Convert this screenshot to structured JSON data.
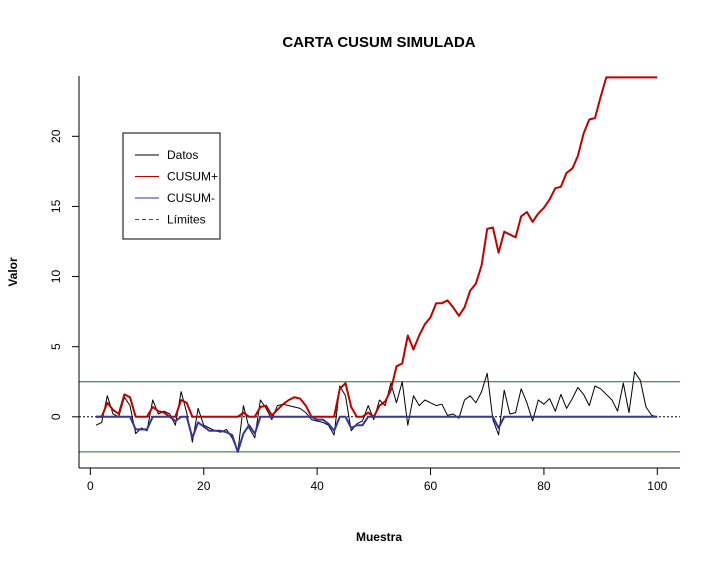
{
  "chart_data": {
    "type": "line",
    "title": "CARTA CUSUM SIMULADA",
    "xlabel": "Muestra",
    "ylabel": "Valor",
    "xlim": [
      -2,
      104
    ],
    "ylim": [
      -3.65,
      24.3
    ],
    "xticks": [
      0,
      20,
      40,
      60,
      80,
      100
    ],
    "yticks": [
      0,
      5,
      10,
      15,
      20
    ],
    "legend_position": "top-left",
    "control_limits": [
      2.5,
      -2.5
    ],
    "center_line": 0,
    "x": [
      1,
      2,
      3,
      4,
      5,
      6,
      7,
      8,
      9,
      10,
      11,
      12,
      13,
      14,
      15,
      16,
      17,
      18,
      19,
      20,
      21,
      22,
      23,
      24,
      25,
      26,
      27,
      28,
      29,
      30,
      31,
      32,
      33,
      34,
      35,
      36,
      37,
      38,
      39,
      40,
      41,
      42,
      43,
      44,
      45,
      46,
      47,
      48,
      49,
      50,
      51,
      52,
      53,
      54,
      55,
      56,
      57,
      58,
      59,
      60,
      61,
      62,
      63,
      64,
      65,
      66,
      67,
      68,
      69,
      70,
      71,
      72,
      73,
      74,
      75,
      76,
      77,
      78,
      79,
      80,
      81,
      82,
      83,
      84,
      85,
      86,
      87,
      88,
      89,
      90,
      91,
      92,
      93,
      94,
      95,
      96,
      97,
      98,
      99,
      100
    ],
    "series": [
      {
        "name": "Datos",
        "color": "#000000",
        "values": [
          -0.6,
          -0.4,
          1.5,
          0.2,
          0.0,
          1.4,
          0.8,
          -1.2,
          -0.8,
          -1.0,
          1.2,
          0.2,
          0.4,
          0.2,
          -0.6,
          1.8,
          0.3,
          -1.8,
          0.6,
          -0.6,
          -0.8,
          -1.0,
          -1.1,
          -0.9,
          -1.5,
          -2.5,
          0.8,
          -0.8,
          -1.5,
          1.2,
          0.6,
          -0.2,
          0.8,
          0.9,
          0.8,
          0.7,
          0.6,
          0.3,
          -0.2,
          -0.3,
          -0.4,
          -0.6,
          -1.3,
          2.2,
          1.5,
          -1.0,
          -0.5,
          -0.3,
          0.8,
          -0.2,
          1.2,
          0.8,
          2.4,
          1.0,
          2.5,
          -0.6,
          1.5,
          0.8,
          1.2,
          1.0,
          0.8,
          0.9,
          0.1,
          0.2,
          -0.1,
          1.2,
          1.5,
          1.0,
          1.8,
          3.1,
          -0.2,
          -1.3,
          1.9,
          0.2,
          0.3,
          2.0,
          1.0,
          -0.3,
          1.2,
          0.9,
          1.3,
          0.4,
          1.6,
          0.6,
          1.3,
          2.1,
          1.6,
          0.8,
          2.2,
          2.0,
          1.6,
          1.2,
          0.4,
          2.4,
          0.3,
          3.2,
          2.6,
          0.7,
          0.1,
          0.0
        ]
      },
      {
        "name": "CUSUM+",
        "color": "#c00000",
        "values": [
          0,
          0,
          1.0,
          0.5,
          0.2,
          1.6,
          1.4,
          0,
          0,
          0,
          0.7,
          0.4,
          0.3,
          0,
          0,
          1.2,
          1.0,
          0,
          0,
          0,
          0,
          0,
          0,
          0,
          0,
          0,
          0.3,
          0,
          0,
          0.7,
          0.8,
          0.1,
          0.5,
          0.9,
          1.2,
          1.4,
          1.3,
          0.8,
          0,
          0,
          0,
          0,
          0,
          2.0,
          2.4,
          0.7,
          0,
          0,
          0.3,
          0,
          0.8,
          1.1,
          1.9,
          3.6,
          3.8,
          5.8,
          4.8,
          5.8,
          6.6,
          7.1,
          8.1,
          8.1,
          8.3,
          7.8,
          7.2,
          7.8,
          9.0,
          9.5,
          10.8,
          13.4,
          13.5,
          11.7,
          13.2,
          13.0,
          12.8,
          14.3,
          14.6,
          13.9,
          14.5,
          14.9,
          15.5,
          16.3,
          16.4,
          17.4,
          17.7,
          18.6,
          20.2,
          21.2,
          21.3,
          22.8,
          24.2,
          24.2,
          24.2,
          24.2,
          24.2,
          24.2,
          24.2,
          24.2,
          24.2,
          24.2
        ]
      },
      {
        "name": "CUSUM-",
        "color": "#3535a0",
        "values": [
          0,
          0,
          0,
          0,
          0,
          0,
          0,
          -0.9,
          -0.9,
          -0.9,
          0,
          0,
          0,
          0,
          -0.3,
          0,
          0,
          -1.5,
          -0.4,
          -0.7,
          -1.0,
          -1.0,
          -1.0,
          -1.1,
          -1.3,
          -2.5,
          -1.2,
          -0.6,
          -1.2,
          0,
          0,
          0,
          0,
          0,
          0,
          0,
          0,
          0,
          0,
          -0.2,
          -0.2,
          -0.5,
          -1.0,
          0,
          0,
          -0.8,
          -0.6,
          -0.6,
          0,
          0,
          0,
          0,
          0,
          0,
          0,
          0,
          0,
          0,
          0,
          0,
          0,
          0,
          0,
          0,
          0,
          0,
          0,
          0,
          0,
          0,
          0,
          -0.8,
          0,
          0,
          0,
          0,
          0,
          0,
          0,
          0,
          0,
          0,
          0,
          0,
          0,
          0,
          0,
          0,
          0,
          0,
          0,
          0,
          0,
          0,
          0,
          0,
          0,
          0,
          0,
          0
        ]
      }
    ],
    "legend": [
      {
        "label": "Datos",
        "color": "#000000",
        "style": "solid"
      },
      {
        "label": "CUSUM+",
        "color": "#c00000",
        "style": "solid"
      },
      {
        "label": "CUSUM-",
        "color": "#3535a0",
        "style": "solid"
      },
      {
        "label": "Límites",
        "color": "#1f6b1f",
        "style": "dashed"
      }
    ]
  }
}
